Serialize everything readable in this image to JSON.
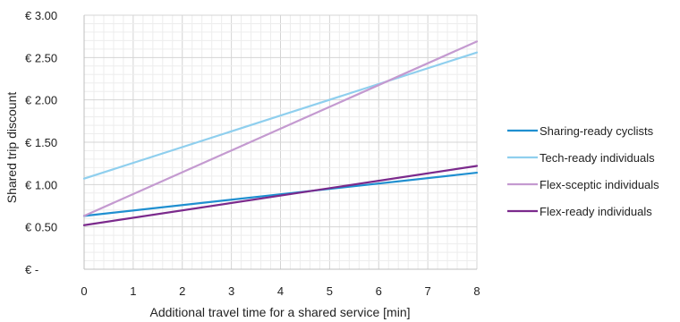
{
  "chart_data": {
    "type": "line",
    "title": "",
    "xlabel": "Additional travel time for a shared service [min]",
    "ylabel": "Shared trip discount",
    "x": [
      0,
      8
    ],
    "xlim": [
      0,
      8
    ],
    "ylim": [
      0,
      3
    ],
    "x_ticks": [
      "0",
      "1",
      "2",
      "3",
      "4",
      "5",
      "6",
      "7",
      "8"
    ],
    "y_ticks": [
      {
        "value": 0,
        "label": "€ -"
      },
      {
        "value": 0.5,
        "label": "€ 0.50"
      },
      {
        "value": 1.0,
        "label": "€ 1.00"
      },
      {
        "value": 1.5,
        "label": "€ 1.50"
      },
      {
        "value": 2.0,
        "label": "€ 2.00"
      },
      {
        "value": 2.5,
        "label": "€ 2.50"
      },
      {
        "value": 3.0,
        "label": "€ 3.00"
      }
    ],
    "grid": "major and minor",
    "legend_position": "right",
    "series": [
      {
        "name": "Sharing-ready cyclists",
        "color": "#1f8fd0",
        "values": [
          0.63,
          1.14
        ]
      },
      {
        "name": "Tech-ready individuals",
        "color": "#8fcfee",
        "values": [
          1.07,
          2.56
        ]
      },
      {
        "name": "Flex-sceptic individuals",
        "color": "#c49ad0",
        "values": [
          0.63,
          2.69
        ]
      },
      {
        "name": "Flex-ready individuals",
        "color": "#7b2a8c",
        "values": [
          0.52,
          1.22
        ]
      }
    ]
  }
}
